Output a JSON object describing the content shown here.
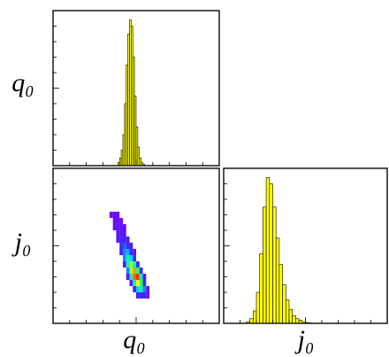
{
  "chart_data": [
    {
      "type": "histogram",
      "ylabel": "q₀",
      "bins": [
        0.39,
        0.4,
        0.41,
        0.42,
        0.43,
        0.44,
        0.45,
        0.46,
        0.47,
        0.48,
        0.49,
        0.5,
        0.51,
        0.52,
        0.53,
        0.54,
        0.55
      ],
      "counts": [
        0.02,
        0.05,
        0.1,
        0.2,
        0.4,
        0.65,
        0.85,
        0.94,
        0.9,
        0.7,
        0.45,
        0.25,
        0.12,
        0.05,
        0.02,
        0.01
      ],
      "color": "#ffff00",
      "xlim": [
        0,
        1
      ],
      "ylim": [
        0,
        1
      ],
      "xticks": [
        0,
        0.1,
        0.2,
        0.3,
        0.4,
        0.5,
        0.6,
        0.7,
        0.8,
        0.9,
        1
      ],
      "yticks": [
        0,
        0.1,
        0.2,
        0.3,
        0.4,
        0.5,
        0.6,
        0.7,
        0.8,
        0.9,
        1
      ]
    },
    {
      "type": "heatmap",
      "xlabel": "q₀",
      "ylabel": "j₀",
      "xbins": [
        0.34,
        0.36,
        0.38,
        0.4,
        0.42,
        0.44,
        0.46,
        0.48,
        0.5,
        0.52,
        0.54,
        0.56,
        0.58
      ],
      "ybins": [
        0.16,
        0.2,
        0.24,
        0.28,
        0.32,
        0.36,
        0.4,
        0.44,
        0.48,
        0.52,
        0.56,
        0.6,
        0.64,
        0.68,
        0.72
      ],
      "z": [
        [
          null,
          null,
          null,
          null,
          null,
          null,
          null,
          null,
          0.1,
          0.2,
          0.15,
          0.05
        ],
        [
          null,
          null,
          null,
          null,
          null,
          null,
          null,
          0.15,
          0.4,
          0.5,
          0.3,
          0.05
        ],
        [
          null,
          null,
          null,
          null,
          null,
          null,
          0.1,
          0.5,
          0.8,
          0.6,
          0.2,
          null
        ],
        [
          null,
          null,
          null,
          null,
          null,
          0.1,
          0.5,
          0.95,
          1.0,
          0.5,
          0.1,
          null
        ],
        [
          null,
          null,
          null,
          null,
          null,
          0.3,
          0.7,
          0.9,
          0.6,
          0.2,
          null,
          null
        ],
        [
          null,
          null,
          null,
          null,
          0.1,
          0.5,
          0.7,
          0.5,
          0.2,
          null,
          null,
          null
        ],
        [
          null,
          null,
          null,
          null,
          0.3,
          0.5,
          0.4,
          0.2,
          null,
          null,
          null,
          null
        ],
        [
          null,
          null,
          null,
          0.1,
          0.3,
          0.35,
          0.2,
          0.05,
          null,
          null,
          null,
          null
        ],
        [
          null,
          null,
          null,
          0.2,
          0.25,
          0.2,
          0.1,
          null,
          null,
          null,
          null,
          null
        ],
        [
          null,
          null,
          0.1,
          0.15,
          0.15,
          0.1,
          null,
          null,
          null,
          null,
          null,
          null
        ],
        [
          null,
          null,
          0.1,
          0.1,
          0.08,
          null,
          null,
          null,
          null,
          null,
          null,
          null
        ],
        [
          null,
          0.05,
          0.08,
          0.06,
          0.03,
          null,
          null,
          null,
          null,
          null,
          null,
          null
        ],
        [
          null,
          0.05,
          0.05,
          0.03,
          null,
          null,
          null,
          null,
          null,
          null,
          null,
          null
        ],
        [
          0.02,
          0.04,
          0.02,
          null,
          null,
          null,
          null,
          null,
          null,
          null,
          null,
          null
        ]
      ],
      "colormap": [
        "#7a00ff",
        "#3030ff",
        "#00d8ff",
        "#30ff60",
        "#ffff00",
        "#ff3000"
      ],
      "xlim": [
        0,
        1
      ],
      "ylim": [
        0,
        1
      ],
      "xticks": [
        0,
        0.1,
        0.2,
        0.3,
        0.4,
        0.5,
        0.6,
        0.7,
        0.8,
        0.9,
        1
      ],
      "yticks": [
        0,
        0.1,
        0.2,
        0.3,
        0.4,
        0.5,
        0.6,
        0.7,
        0.8,
        0.9,
        1
      ]
    },
    {
      "type": "histogram",
      "xlabel": "j₀",
      "bins": [
        0.14,
        0.16,
        0.18,
        0.2,
        0.22,
        0.24,
        0.26,
        0.28,
        0.3,
        0.32,
        0.34,
        0.36,
        0.38,
        0.4,
        0.42,
        0.44,
        0.46,
        0.48,
        0.5,
        0.52,
        0.54
      ],
      "counts": [
        0.01,
        0.03,
        0.08,
        0.2,
        0.45,
        0.75,
        0.94,
        0.9,
        0.75,
        0.55,
        0.38,
        0.25,
        0.15,
        0.09,
        0.05,
        0.03,
        0.02,
        0.01,
        0.005,
        0.002
      ],
      "color": "#ffff00",
      "xlim": [
        0,
        1
      ],
      "ylim": [
        0,
        1
      ],
      "xticks": [
        0,
        0.1,
        0.2,
        0.3,
        0.4,
        0.5,
        0.6,
        0.7,
        0.8,
        0.9,
        1
      ],
      "yticks": [
        0,
        0.1,
        0.2,
        0.3,
        0.4,
        0.5,
        0.6,
        0.7,
        0.8,
        0.9,
        1
      ]
    }
  ]
}
